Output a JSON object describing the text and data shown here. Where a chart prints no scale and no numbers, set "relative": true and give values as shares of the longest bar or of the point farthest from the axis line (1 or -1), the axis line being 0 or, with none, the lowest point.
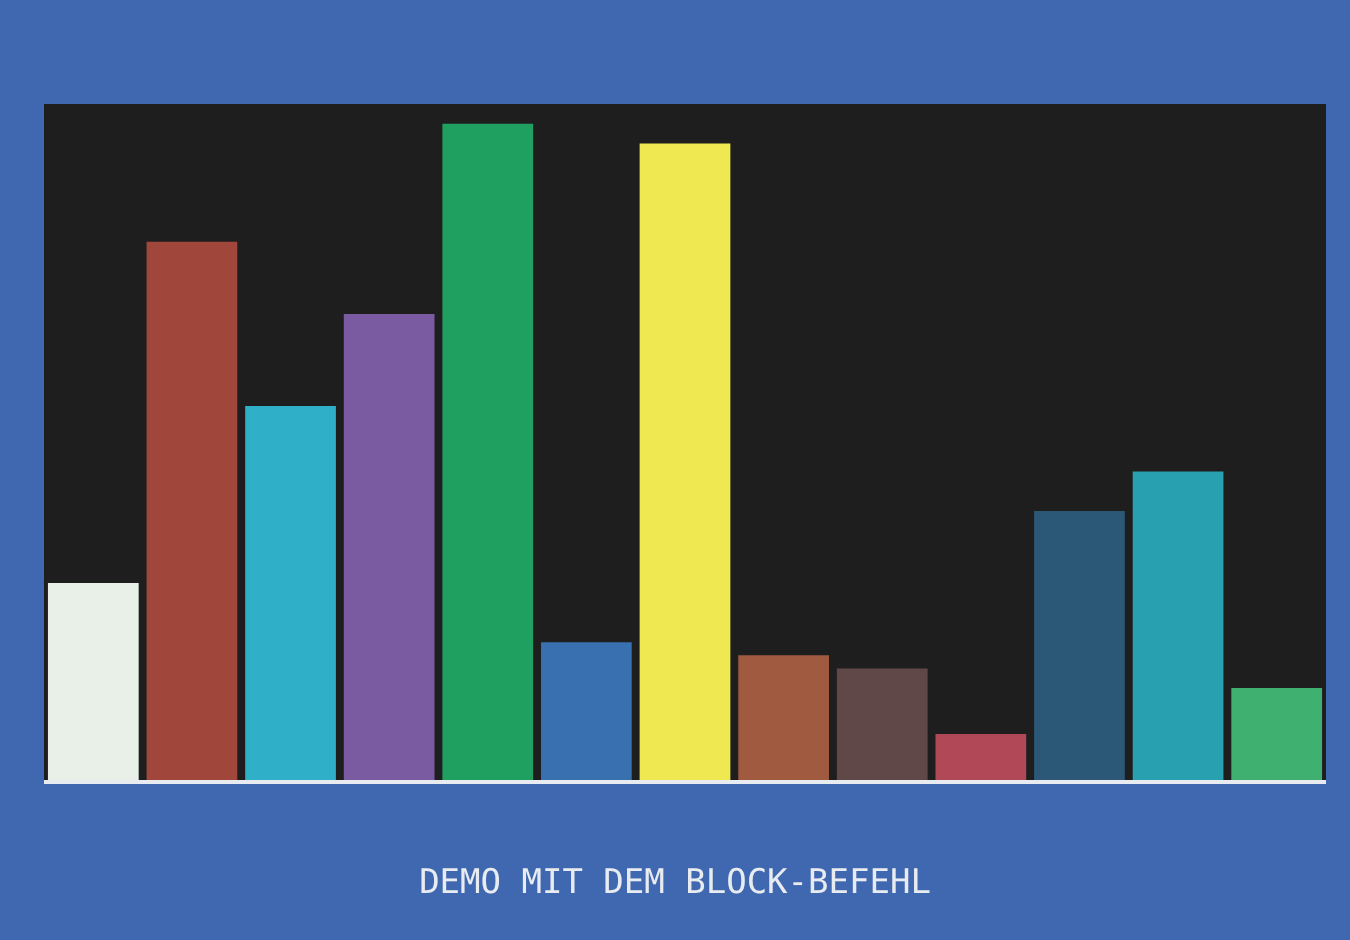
{
  "chart_data": {
    "type": "bar",
    "title": "DEMO MIT DEM BLOCK-BEFEHL",
    "relative": true,
    "categories": [
      null,
      null,
      null,
      null,
      null,
      null,
      null,
      null,
      null,
      null,
      null,
      null,
      null
    ],
    "values": [
      0.3,
      0.82,
      0.57,
      0.71,
      1,
      0.21,
      0.97,
      0.19,
      0.17,
      0.07,
      0.41,
      0.47,
      0.14
    ],
    "colors": [
      "#e8f0e8",
      "#a0463a",
      "#30b0c8",
      "#7a5aa0",
      "#20a060",
      "#3870b0",
      "#f0e850",
      "#a05a40",
      "#604848",
      "#b04858",
      "#2c5878",
      "#28a0b0",
      "#40b070"
    ]
  }
}
